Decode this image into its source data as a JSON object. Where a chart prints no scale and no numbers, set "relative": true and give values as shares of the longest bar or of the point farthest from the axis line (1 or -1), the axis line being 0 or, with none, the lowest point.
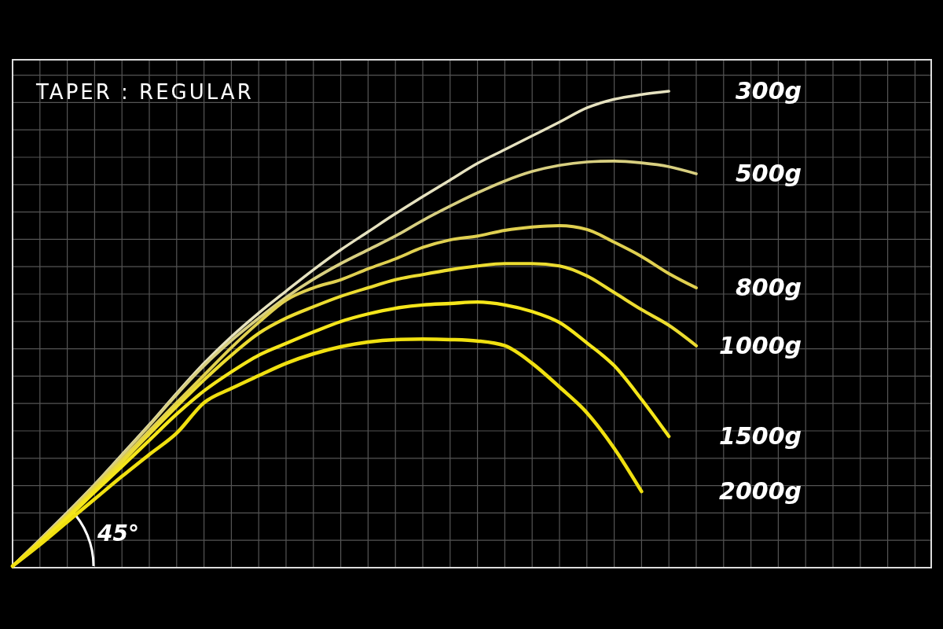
{
  "chart_data": {
    "type": "line",
    "title": "TAPER : REGULAR",
    "annotations": [
      "45°"
    ],
    "relative": true,
    "grid": true,
    "categories": [
      null,
      null,
      null,
      null,
      null,
      null,
      null,
      null,
      null,
      null,
      null,
      null,
      null,
      null,
      null,
      null,
      null,
      null,
      null,
      null,
      null,
      null,
      null,
      null,
      null,
      null
    ],
    "series": [
      {
        "name": "300g",
        "color": "#e6e2c0",
        "values": [
          0,
          0.056,
          0.113,
          0.172,
          0.235,
          0.298,
          0.364,
          0.427,
          0.483,
          0.533,
          0.579,
          0.624,
          0.666,
          0.704,
          0.742,
          0.778,
          0.813,
          0.848,
          0.877,
          0.906,
          0.935,
          0.965,
          0.983,
          0.993,
          1,
          null
        ]
      },
      {
        "name": "500g",
        "color": "#d8cf80",
        "values": [
          0,
          0.055,
          0.111,
          0.171,
          0.233,
          0.296,
          0.361,
          0.422,
          0.475,
          0.522,
          0.566,
          0.604,
          0.637,
          0.666,
          0.695,
          0.728,
          0.758,
          0.786,
          0.811,
          0.831,
          0.844,
          0.851,
          0.853,
          0.849,
          0.841,
          0.826
        ]
      },
      {
        "name": "800g",
        "color": "#e0d050",
        "values": [
          0,
          0.053,
          0.108,
          0.166,
          0.225,
          0.285,
          0.344,
          0.402,
          0.46,
          0.513,
          0.56,
          0.586,
          0.603,
          0.626,
          0.647,
          0.671,
          0.687,
          0.695,
          0.707,
          0.714,
          0.717,
          0.709,
          0.682,
          0.652,
          0.616,
          0.586
        ]
      },
      {
        "name": "1000g",
        "color": "#ecdc30",
        "values": [
          0,
          0.051,
          0.104,
          0.161,
          0.219,
          0.278,
          0.336,
          0.392,
          0.444,
          0.49,
          0.522,
          0.546,
          0.568,
          0.586,
          0.603,
          0.614,
          0.624,
          0.632,
          0.637,
          0.637,
          0.632,
          0.611,
          0.576,
          0.54,
          0.507,
          0.464
        ]
      },
      {
        "name": "1500g",
        "color": "#f5e61a",
        "values": [
          0,
          0.05,
          0.101,
          0.156,
          0.21,
          0.265,
          0.32,
          0.369,
          0.409,
          0.444,
          0.469,
          0.493,
          0.515,
          0.531,
          0.543,
          0.55,
          0.553,
          0.556,
          0.55,
          0.536,
          0.513,
          0.47,
          0.422,
          0.351,
          0.273,
          null
        ]
      },
      {
        "name": "2000g",
        "color": "#f0e010",
        "values": [
          0,
          0.045,
          0.093,
          0.141,
          0.189,
          0.235,
          0.28,
          0.344,
          0.374,
          0.401,
          0.427,
          0.447,
          0.462,
          0.472,
          0.477,
          0.478,
          0.477,
          0.474,
          0.464,
          0.427,
          0.377,
          0.323,
          0.248,
          0.157,
          null,
          null
        ]
      }
    ]
  }
}
